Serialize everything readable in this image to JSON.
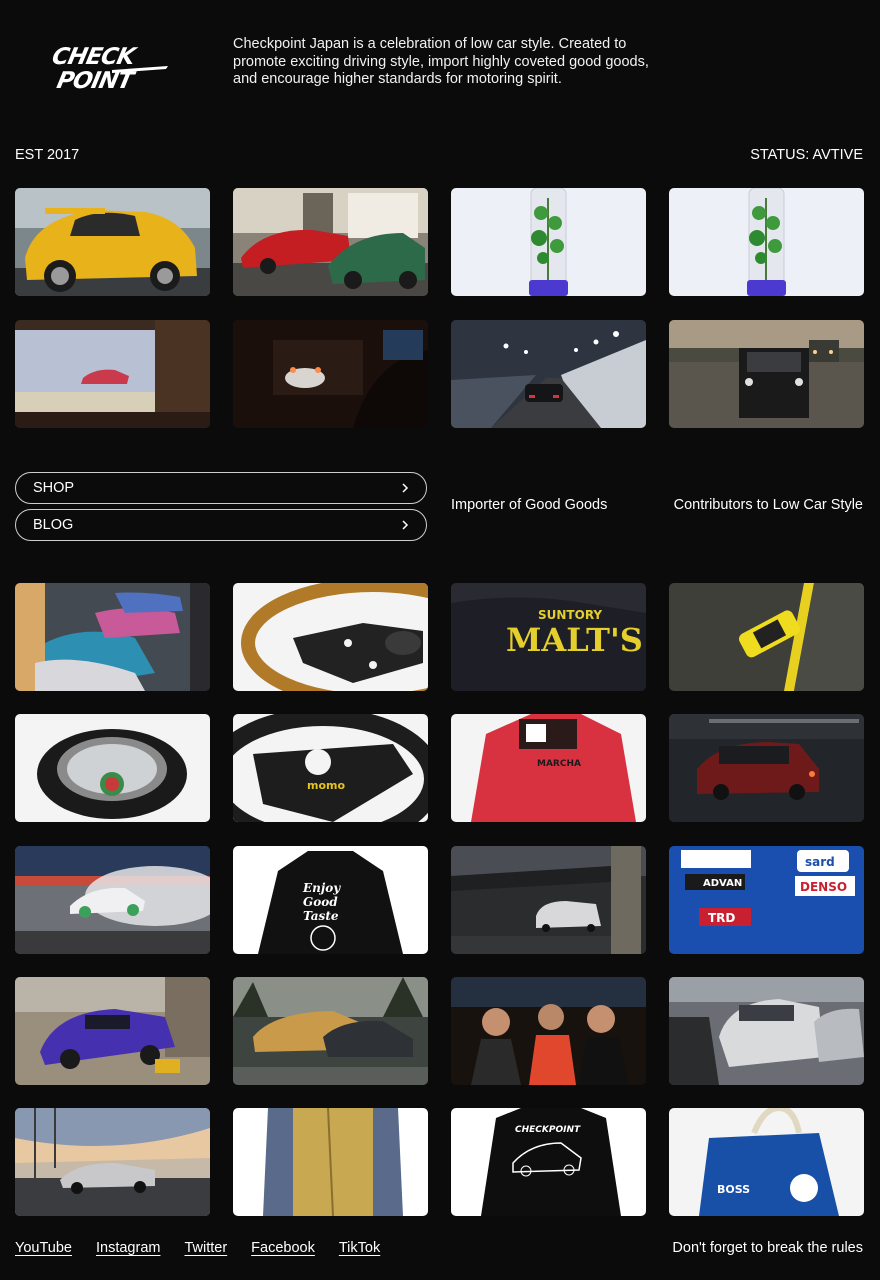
{
  "brand": {
    "logo_text_top": "CHECK",
    "logo_text_bottom": "POINT",
    "description": "Checkpoint Japan is a celebration of low car style. Created to promote exciting driving style, import highly coveted good goods, and encourage higher standards for motoring spirit."
  },
  "meta": {
    "established": "EST 2017",
    "status": "STATUS: AVTIVE"
  },
  "nav": {
    "shop_label": "SHOP",
    "blog_label": "BLOG"
  },
  "taglines": {
    "importer": "Importer of Good Goods",
    "contributors": "Contributors to Low Car Style"
  },
  "tiles_top": [
    {
      "name": "yellow-porsche-rwb",
      "bg": "#5f6a70",
      "accent": "#e7b21c"
    },
    {
      "name": "red-and-green-sportscars",
      "bg": "#6e6a60",
      "accent": "#c81d22"
    },
    {
      "name": "shift-knob-plant-1",
      "bg": "#eef0f6",
      "accent": "#3c8d3a"
    },
    {
      "name": "shift-knob-plant-2",
      "bg": "#eef0f6",
      "accent": "#3c8d3a"
    },
    {
      "name": "model-car-window",
      "bg": "#3a2a20",
      "accent": "#c84052"
    },
    {
      "name": "night-driving-cockpit",
      "bg": "#1a100c",
      "accent": "#d9cfc8"
    },
    {
      "name": "tunnel-drive",
      "bg": "#2c3038",
      "accent": "#d8dde4"
    },
    {
      "name": "black-sedan-road",
      "bg": "#55524c",
      "accent": "#1a1a1a"
    }
  ],
  "tiles_bottom": [
    {
      "name": "cars-garage-row",
      "bg": "#3a3f45",
      "accent": "#2d93b4"
    },
    {
      "name": "gold-steering-wheel",
      "bg": "#f4f4f4",
      "accent": "#b07a28"
    },
    {
      "name": "suntory-malts-jacket",
      "bg": "#1c1c22",
      "accent": "#e5cf2c"
    },
    {
      "name": "aerial-yellow-car",
      "bg": "#3b3c36",
      "accent": "#f0dc1e"
    },
    {
      "name": "tire-ashtray",
      "bg": "#f4f4f4",
      "accent": "#222222"
    },
    {
      "name": "momo-steering-wheel",
      "bg": "#f4f4f4",
      "accent": "#1d1d1d"
    },
    {
      "name": "red-racing-jacket",
      "bg": "#f4f4f4",
      "accent": "#d83240"
    },
    {
      "name": "red-sedan-night",
      "bg": "#202326",
      "accent": "#6e1a1a"
    },
    {
      "name": "drifting-car-smoke",
      "bg": "#7a7c82",
      "accent": "#f0f0f0"
    },
    {
      "name": "enjoy-good-taste-hoodie",
      "bg": "#ffffff",
      "accent": "#111111"
    },
    {
      "name": "minivan-overpass",
      "bg": "#2a2c2e",
      "accent": "#cfcfcf"
    },
    {
      "name": "sponsor-jacket",
      "bg": "#1a4fb0",
      "accent": "#ffffff"
    },
    {
      "name": "purple-drift-car",
      "bg": "#9a8e7c",
      "accent": "#4530b0"
    },
    {
      "name": "gold-skyline-forest",
      "bg": "#3e4440",
      "accent": "#c99a4a"
    },
    {
      "name": "friends-night",
      "bg": "#18120e",
      "accent": "#e0472c"
    },
    {
      "name": "silver-skyline-lot",
      "bg": "#6a6e74",
      "accent": "#d8dadc"
    },
    {
      "name": "silver-car-bridge",
      "bg": "#c7b9a8",
      "accent": "#c8c8c8"
    },
    {
      "name": "yellow-denim-jacket",
      "bg": "#ffffff",
      "accent": "#c8a850"
    },
    {
      "name": "checkpoint-hoodie",
      "bg": "#ffffff",
      "accent": "#0e0e0e"
    },
    {
      "name": "blue-boss-bag",
      "bg": "#f4f4f4",
      "accent": "#1850a8"
    }
  ],
  "tile_text": {
    "malts_top": "SUNTORY",
    "malts_main": "MALT'S",
    "hoodie_line1": "Enjoy",
    "hoodie_line2": "Good",
    "hoodie_line3": "Taste",
    "jacket_denso": "DENSO",
    "jacket_advan": "ADVAN",
    "jacket_trd": "TRD",
    "jacket_sard": "sard",
    "momo": "momo",
    "marcha": "MARCHA",
    "hoodie2": "CHECKPOINT",
    "bag_boss": "BOSS"
  },
  "social": {
    "youtube": "YouTube",
    "instagram": "Instagram",
    "twitter": "Twitter",
    "facebook": "Facebook",
    "tiktok": "TikTok"
  },
  "footer_tagline": "Don't forget to break the rules"
}
